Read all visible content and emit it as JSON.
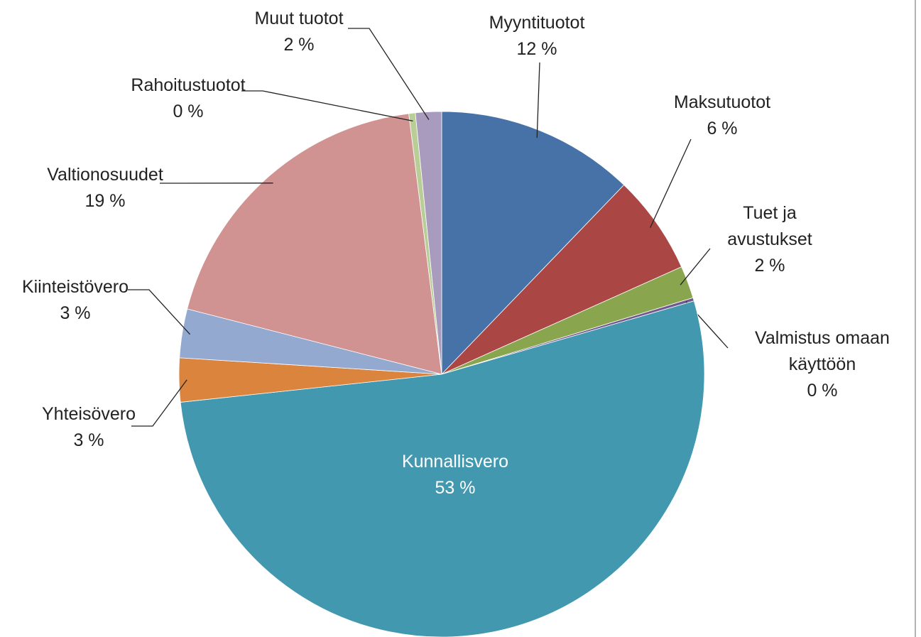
{
  "chart_data": {
    "type": "pie",
    "categories": [
      "Myyntituotot",
      "Maksutuotot",
      "Tuet ja avustukset",
      "Valmistus omaan käyttöön",
      "Kunnallisvero",
      "Yhteisövero",
      "Kiinteistövero",
      "Valtionosuudet",
      "Rahoitustuotot",
      "Muut tuotot"
    ],
    "values": [
      12.2,
      6.1,
      2.0,
      0.2,
      52.8,
      2.7,
      3.0,
      19.0,
      0.4,
      1.6
    ],
    "value_labels": [
      "12 %",
      "6 %",
      "2 %",
      "0 %",
      "53 %",
      "3 %",
      "3 %",
      "19 %",
      "0 %",
      "2 %"
    ],
    "colors": [
      "#4672a8",
      "#aa4644",
      "#89a54e",
      "#71588f",
      "#4298af",
      "#db843d",
      "#93a9cf",
      "#d19392",
      "#b9cd96",
      "#a99bbd"
    ]
  }
}
